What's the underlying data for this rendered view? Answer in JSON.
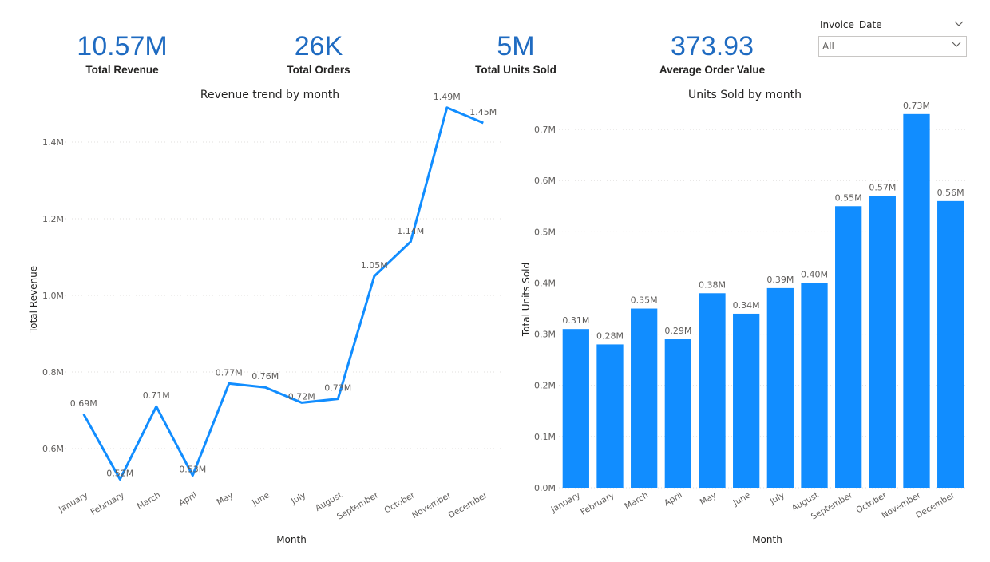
{
  "kpis": [
    {
      "value": "10.57M",
      "label": "Total Revenue"
    },
    {
      "value": "26K",
      "label": "Total Orders"
    },
    {
      "value": "5M",
      "label": "Total Units Sold"
    },
    {
      "value": "373.93",
      "label": "Average Order Value"
    }
  ],
  "slicer": {
    "title": "Invoice_Date",
    "selected": "All"
  },
  "colors": {
    "accent": "#118dff",
    "kpi_value": "#1f6bc1"
  },
  "chart_data": [
    {
      "type": "line",
      "title": "Revenue trend by month",
      "xlabel": "Month",
      "ylabel": "Total Revenue",
      "categories": [
        "January",
        "February",
        "March",
        "April",
        "May",
        "June",
        "July",
        "August",
        "September",
        "October",
        "November",
        "December"
      ],
      "values": [
        0.69,
        0.52,
        0.71,
        0.53,
        0.77,
        0.76,
        0.72,
        0.73,
        1.05,
        1.14,
        1.49,
        1.45
      ],
      "data_labels": [
        "0.69M",
        "0.52M",
        "0.71M",
        "0.53M",
        "0.77M",
        "0.76M",
        "0.72M",
        "0.73M",
        "1.05M",
        "1.14M",
        "1.49M",
        "1.45M"
      ],
      "ylim": [
        0.5,
        1.5
      ],
      "yticks": [
        0.6,
        0.8,
        1.0,
        1.2,
        1.4
      ],
      "ytick_labels": [
        "0.6M",
        "0.8M",
        "1.0M",
        "1.2M",
        "1.4M"
      ],
      "grid": true
    },
    {
      "type": "bar",
      "title": "Units Sold by month",
      "xlabel": "Month",
      "ylabel": "Total Units Sold",
      "categories": [
        "January",
        "February",
        "March",
        "April",
        "May",
        "June",
        "July",
        "August",
        "September",
        "October",
        "November",
        "December"
      ],
      "values": [
        0.31,
        0.28,
        0.35,
        0.29,
        0.38,
        0.34,
        0.39,
        0.4,
        0.55,
        0.57,
        0.73,
        0.56
      ],
      "data_labels": [
        "0.31M",
        "0.28M",
        "0.35M",
        "0.29M",
        "0.38M",
        "0.34M",
        "0.39M",
        "0.40M",
        "0.55M",
        "0.57M",
        "0.73M",
        "0.56M"
      ],
      "ylim": [
        0,
        0.75
      ],
      "yticks": [
        0,
        0.1,
        0.2,
        0.3,
        0.4,
        0.5,
        0.6,
        0.7
      ],
      "ytick_labels": [
        "0.0M",
        "0.1M",
        "0.2M",
        "0.3M",
        "0.4M",
        "0.5M",
        "0.6M",
        "0.7M"
      ],
      "grid": true
    }
  ]
}
